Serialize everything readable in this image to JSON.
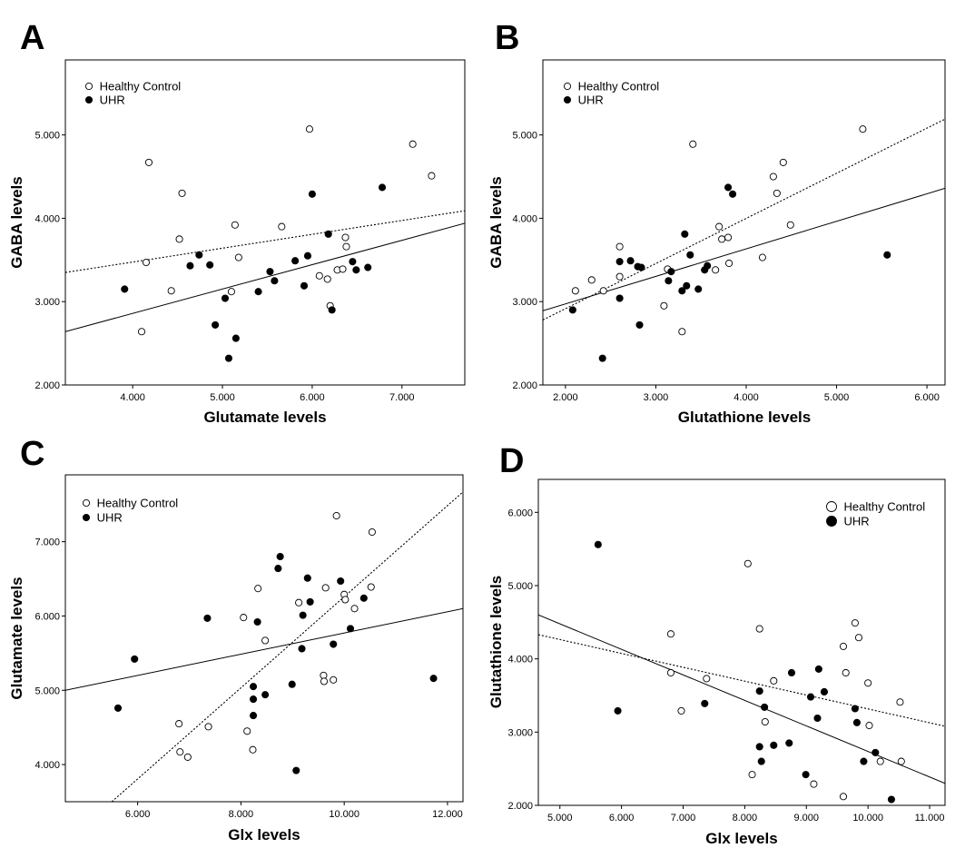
{
  "legend_entries": [
    "Healthy Control",
    "UHR"
  ],
  "chart_data": [
    {
      "panel": "A",
      "type": "scatter",
      "xlabel": "Glutamate levels",
      "ylabel": "GABA levels",
      "xlim": [
        3.25,
        7.7
      ],
      "ylim": [
        2.0,
        5.9
      ],
      "xticks": [
        4.0,
        5.0,
        6.0,
        7.0
      ],
      "xtick_labels": [
        "4.000",
        "5.000",
        "6.000",
        "7.000"
      ],
      "yticks": [
        2.0,
        3.0,
        4.0,
        5.0
      ],
      "ytick_labels": [
        "2.000",
        "3.000",
        "4.000",
        "5.000"
      ],
      "legend_position": "top-left",
      "series": [
        {
          "name": "Healthy Control",
          "marker": "open",
          "points": [
            [
              4.1,
              2.64
            ],
            [
              4.15,
              3.47
            ],
            [
              4.18,
              4.67
            ],
            [
              4.43,
              3.13
            ],
            [
              4.52,
              3.75
            ],
            [
              4.55,
              4.3
            ],
            [
              5.1,
              3.12
            ],
            [
              5.14,
              3.92
            ],
            [
              5.18,
              3.53
            ],
            [
              5.66,
              3.9
            ],
            [
              5.97,
              5.07
            ],
            [
              6.08,
              3.31
            ],
            [
              6.17,
              3.27
            ],
            [
              6.2,
              2.95
            ],
            [
              6.28,
              3.38
            ],
            [
              6.34,
              3.39
            ],
            [
              6.37,
              3.77
            ],
            [
              6.38,
              3.66
            ],
            [
              7.12,
              4.89
            ],
            [
              7.33,
              4.51
            ]
          ]
        },
        {
          "name": "UHR",
          "marker": "filled",
          "points": [
            [
              3.91,
              3.15
            ],
            [
              4.64,
              3.43
            ],
            [
              4.74,
              3.56
            ],
            [
              4.86,
              3.44
            ],
            [
              4.92,
              2.72
            ],
            [
              5.03,
              3.04
            ],
            [
              5.07,
              2.32
            ],
            [
              5.15,
              2.56
            ],
            [
              5.4,
              3.12
            ],
            [
              5.53,
              3.36
            ],
            [
              5.58,
              3.25
            ],
            [
              5.81,
              3.49
            ],
            [
              5.91,
              3.19
            ],
            [
              5.95,
              3.55
            ],
            [
              6.0,
              4.29
            ],
            [
              6.18,
              3.81
            ],
            [
              6.22,
              2.9
            ],
            [
              6.45,
              3.48
            ],
            [
              6.49,
              3.38
            ],
            [
              6.62,
              3.41
            ],
            [
              6.78,
              4.37
            ]
          ]
        }
      ],
      "fit_lines": [
        {
          "style": "dotted",
          "x": [
            3.25,
            7.7
          ],
          "y": [
            3.35,
            4.09
          ]
        },
        {
          "style": "solid",
          "x": [
            3.25,
            7.7
          ],
          "y": [
            2.64,
            3.94
          ]
        }
      ]
    },
    {
      "panel": "B",
      "type": "scatter",
      "xlabel": "Glutathione levels",
      "ylabel": "GABA levels",
      "xlim": [
        1.75,
        6.2
      ],
      "ylim": [
        2.0,
        5.9
      ],
      "xticks": [
        2.0,
        3.0,
        4.0,
        5.0,
        6.0
      ],
      "xtick_labels": [
        "2.000",
        "3.000",
        "4.000",
        "5.000",
        "6.000"
      ],
      "yticks": [
        2.0,
        3.0,
        4.0,
        5.0
      ],
      "ytick_labels": [
        "2.000",
        "3.000",
        "4.000",
        "5.000"
      ],
      "legend_position": "top-left",
      "series": [
        {
          "name": "Healthy Control",
          "marker": "open",
          "points": [
            [
              2.11,
              3.13
            ],
            [
              2.29,
              3.26
            ],
            [
              2.42,
              3.13
            ],
            [
              2.6,
              3.66
            ],
            [
              2.6,
              3.3
            ],
            [
              3.09,
              2.95
            ],
            [
              3.13,
              3.39
            ],
            [
              3.29,
              2.64
            ],
            [
              3.41,
              4.89
            ],
            [
              3.66,
              3.38
            ],
            [
              3.7,
              3.9
            ],
            [
              3.73,
              3.75
            ],
            [
              3.8,
              3.77
            ],
            [
              3.81,
              3.46
            ],
            [
              4.18,
              3.53
            ],
            [
              4.3,
              4.5
            ],
            [
              4.34,
              4.3
            ],
            [
              4.41,
              4.67
            ],
            [
              4.49,
              3.92
            ],
            [
              5.29,
              5.07
            ]
          ]
        },
        {
          "name": "UHR",
          "marker": "filled",
          "points": [
            [
              2.08,
              2.9
            ],
            [
              2.41,
              2.32
            ],
            [
              2.6,
              3.04
            ],
            [
              2.6,
              3.48
            ],
            [
              2.72,
              3.49
            ],
            [
              2.8,
              3.42
            ],
            [
              2.84,
              3.41
            ],
            [
              2.82,
              2.72
            ],
            [
              3.14,
              3.25
            ],
            [
              3.17,
              3.36
            ],
            [
              3.29,
              3.13
            ],
            [
              3.32,
              3.81
            ],
            [
              3.34,
              3.19
            ],
            [
              3.38,
              3.56
            ],
            [
              3.47,
              3.15
            ],
            [
              3.54,
              3.38
            ],
            [
              3.57,
              3.43
            ],
            [
              3.8,
              4.37
            ],
            [
              3.85,
              4.29
            ],
            [
              5.56,
              3.56
            ]
          ]
        }
      ],
      "fit_lines": [
        {
          "style": "dotted",
          "x": [
            1.75,
            6.2
          ],
          "y": [
            2.78,
            5.19
          ]
        },
        {
          "style": "solid",
          "x": [
            1.75,
            6.2
          ],
          "y": [
            2.89,
            4.36
          ]
        }
      ]
    },
    {
      "panel": "C",
      "type": "scatter",
      "xlabel": "Glx levels",
      "ylabel": "Glutamate levels",
      "xlim": [
        4.6,
        12.3
      ],
      "ylim": [
        3.5,
        7.9
      ],
      "xticks": [
        6.0,
        8.0,
        10.0,
        12.0
      ],
      "xtick_labels": [
        "6.000",
        "8.000",
        "10.000",
        "12.000"
      ],
      "yticks": [
        4.0,
        5.0,
        6.0,
        7.0
      ],
      "ytick_labels": [
        "4.000",
        "5.000",
        "6.000",
        "7.000"
      ],
      "legend_position": "top-left",
      "series": [
        {
          "name": "Healthy Control",
          "marker": "open",
          "points": [
            [
              6.8,
              4.55
            ],
            [
              6.82,
              4.17
            ],
            [
              6.97,
              4.1
            ],
            [
              7.37,
              4.51
            ],
            [
              8.05,
              5.98
            ],
            [
              8.12,
              4.45
            ],
            [
              8.23,
              4.2
            ],
            [
              8.33,
              6.37
            ],
            [
              8.47,
              5.67
            ],
            [
              9.12,
              6.18
            ],
            [
              9.6,
              5.2
            ],
            [
              9.61,
              5.12
            ],
            [
              9.64,
              6.38
            ],
            [
              9.79,
              5.14
            ],
            [
              9.85,
              7.35
            ],
            [
              10.0,
              6.29
            ],
            [
              10.02,
              6.22
            ],
            [
              10.2,
              6.1
            ],
            [
              10.52,
              6.39
            ],
            [
              10.54,
              7.13
            ]
          ]
        },
        {
          "name": "UHR",
          "marker": "filled",
          "points": [
            [
              5.62,
              4.76
            ],
            [
              5.94,
              5.42
            ],
            [
              7.35,
              5.97
            ],
            [
              8.24,
              5.05
            ],
            [
              8.24,
              4.88
            ],
            [
              8.24,
              4.66
            ],
            [
              8.32,
              5.92
            ],
            [
              8.47,
              4.94
            ],
            [
              8.72,
              6.64
            ],
            [
              8.76,
              6.8
            ],
            [
              8.99,
              5.08
            ],
            [
              9.07,
              3.92
            ],
            [
              9.18,
              5.56
            ],
            [
              9.2,
              6.01
            ],
            [
              9.29,
              6.51
            ],
            [
              9.34,
              6.19
            ],
            [
              9.79,
              5.62
            ],
            [
              9.93,
              6.47
            ],
            [
              10.12,
              5.83
            ],
            [
              10.38,
              6.24
            ],
            [
              11.73,
              5.16
            ]
          ]
        }
      ],
      "fit_lines": [
        {
          "style": "dotted",
          "x": [
            5.5,
            12.3
          ],
          "y": [
            3.5,
            7.67
          ]
        },
        {
          "style": "solid",
          "x": [
            4.6,
            12.3
          ],
          "y": [
            5.0,
            6.1
          ]
        }
      ]
    },
    {
      "panel": "D",
      "type": "scatter",
      "xlabel": "Glx levels",
      "ylabel": "Glutathione levels",
      "xlim": [
        4.65,
        11.25
      ],
      "ylim": [
        2.0,
        6.45
      ],
      "xticks": [
        5.0,
        6.0,
        7.0,
        8.0,
        9.0,
        10.0,
        11.0
      ],
      "xtick_labels": [
        "5.000",
        "6.000",
        "7.000",
        "8.000",
        "9.000",
        "10.000",
        "11.000"
      ],
      "yticks": [
        2.0,
        3.0,
        4.0,
        5.0,
        6.0
      ],
      "ytick_labels": [
        "2.000",
        "3.000",
        "4.000",
        "5.000",
        "6.000"
      ],
      "legend_position": "top-right",
      "series": [
        {
          "name": "Healthy Control",
          "marker": "open",
          "points": [
            [
              6.8,
              4.34
            ],
            [
              6.8,
              3.81
            ],
            [
              6.97,
              3.29
            ],
            [
              7.38,
              3.73
            ],
            [
              8.05,
              5.3
            ],
            [
              8.12,
              2.42
            ],
            [
              8.24,
              4.41
            ],
            [
              8.33,
              3.14
            ],
            [
              8.47,
              3.7
            ],
            [
              9.12,
              2.29
            ],
            [
              9.6,
              2.12
            ],
            [
              9.6,
              4.17
            ],
            [
              9.64,
              3.81
            ],
            [
              9.79,
              4.49
            ],
            [
              9.85,
              4.29
            ],
            [
              10.0,
              3.67
            ],
            [
              10.02,
              3.09
            ],
            [
              10.2,
              2.6
            ],
            [
              10.52,
              3.41
            ],
            [
              10.54,
              2.6
            ]
          ]
        },
        {
          "name": "UHR",
          "marker": "filled",
          "points": [
            [
              5.62,
              5.56
            ],
            [
              5.94,
              3.29
            ],
            [
              7.35,
              3.39
            ],
            [
              8.24,
              3.56
            ],
            [
              8.24,
              2.8
            ],
            [
              8.27,
              2.6
            ],
            [
              8.32,
              3.34
            ],
            [
              8.47,
              2.82
            ],
            [
              8.72,
              2.85
            ],
            [
              8.76,
              3.81
            ],
            [
              8.99,
              2.42
            ],
            [
              9.07,
              3.48
            ],
            [
              9.18,
              3.19
            ],
            [
              9.2,
              3.86
            ],
            [
              9.29,
              3.55
            ],
            [
              9.79,
              3.32
            ],
            [
              9.82,
              3.13
            ],
            [
              9.93,
              2.6
            ],
            [
              10.12,
              2.72
            ],
            [
              10.38,
              2.08
            ]
          ]
        }
      ],
      "fit_lines": [
        {
          "style": "dotted",
          "x": [
            4.65,
            11.25
          ],
          "y": [
            4.33,
            3.08
          ]
        },
        {
          "style": "solid",
          "x": [
            4.65,
            11.25
          ],
          "y": [
            4.6,
            2.3
          ]
        }
      ]
    }
  ]
}
